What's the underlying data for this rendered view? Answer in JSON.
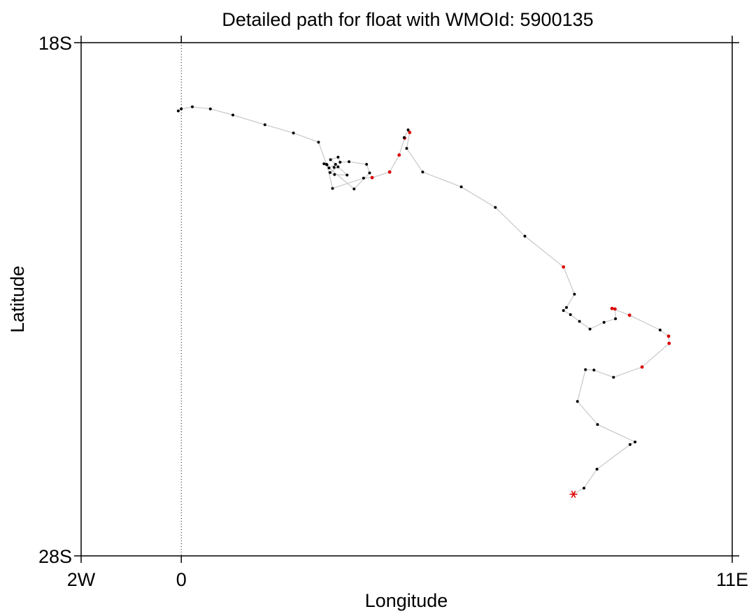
{
  "chart_data": {
    "type": "scatter",
    "title": "Detailed path for float with WMOId: 5900135",
    "xlabel": "Longitude",
    "ylabel": "Latitude",
    "xlim": [
      -2,
      11
    ],
    "ylim": [
      -28,
      -18
    ],
    "x_ticks": [
      {
        "value": -2,
        "label": "2W"
      },
      {
        "value": 0,
        "label": "0"
      },
      {
        "value": 11,
        "label": "11E"
      }
    ],
    "y_ticks": [
      {
        "value": -18,
        "label": "18S"
      },
      {
        "value": -28,
        "label": "28S"
      }
    ],
    "grid": false,
    "reference_line_x": 0,
    "colors": {
      "path": "#c8c8c8",
      "normal_point": "#000000",
      "flagged_point": "#dd0000",
      "last_position": "#dd0000"
    },
    "points": [
      {
        "lon": -0.06,
        "lat": -19.33,
        "flag": false
      },
      {
        "lon": 0.0,
        "lat": -19.29,
        "flag": false
      },
      {
        "lon": 0.22,
        "lat": -19.25,
        "flag": false
      },
      {
        "lon": 0.58,
        "lat": -19.29,
        "flag": false
      },
      {
        "lon": 1.03,
        "lat": -19.41,
        "flag": false
      },
      {
        "lon": 1.67,
        "lat": -19.6,
        "flag": false
      },
      {
        "lon": 2.24,
        "lat": -19.76,
        "flag": false
      },
      {
        "lon": 2.74,
        "lat": -19.94,
        "flag": false
      },
      {
        "lon": 2.9,
        "lat": -20.37,
        "flag": false
      },
      {
        "lon": 2.95,
        "lat": -20.44,
        "flag": false
      },
      {
        "lon": 3.08,
        "lat": -20.37,
        "flag": false
      },
      {
        "lon": 3.05,
        "lat": -20.43,
        "flag": false
      },
      {
        "lon": 3.13,
        "lat": -20.42,
        "flag": false
      },
      {
        "lon": 2.97,
        "lat": -20.53,
        "flag": false
      },
      {
        "lon": 3.06,
        "lat": -20.57,
        "flag": false
      },
      {
        "lon": 3.31,
        "lat": -20.58,
        "flag": false
      },
      {
        "lon": 2.98,
        "lat": -20.28,
        "flag": false
      },
      {
        "lon": 3.13,
        "lat": -20.23,
        "flag": false
      },
      {
        "lon": 3.17,
        "lat": -20.33,
        "flag": false
      },
      {
        "lon": 3.35,
        "lat": -20.32,
        "flag": false
      },
      {
        "lon": 3.7,
        "lat": -20.37,
        "flag": false
      },
      {
        "lon": 3.76,
        "lat": -20.54,
        "flag": false
      },
      {
        "lon": 3.45,
        "lat": -20.85,
        "flag": false
      },
      {
        "lon": 2.85,
        "lat": -20.36,
        "flag": false
      },
      {
        "lon": 2.91,
        "lat": -20.38,
        "flag": false
      },
      {
        "lon": 3.02,
        "lat": -20.84,
        "flag": false
      },
      {
        "lon": 3.64,
        "lat": -20.64,
        "flag": false
      },
      {
        "lon": 3.81,
        "lat": -20.63,
        "flag": true
      },
      {
        "lon": 4.16,
        "lat": -20.52,
        "flag": true
      },
      {
        "lon": 4.35,
        "lat": -20.19,
        "flag": true
      },
      {
        "lon": 4.46,
        "lat": -19.86,
        "flag": true
      },
      {
        "lon": 4.45,
        "lat": -19.85,
        "flag": false
      },
      {
        "lon": 4.53,
        "lat": -19.7,
        "flag": false
      },
      {
        "lon": 4.56,
        "lat": -19.75,
        "flag": true
      },
      {
        "lon": 4.5,
        "lat": -20.06,
        "flag": false
      },
      {
        "lon": 4.82,
        "lat": -20.52,
        "flag": false
      },
      {
        "lon": 5.59,
        "lat": -20.81,
        "flag": false
      },
      {
        "lon": 6.27,
        "lat": -21.21,
        "flag": false
      },
      {
        "lon": 6.86,
        "lat": -21.77,
        "flag": false
      },
      {
        "lon": 7.63,
        "lat": -22.37,
        "flag": true
      },
      {
        "lon": 7.85,
        "lat": -22.9,
        "flag": false
      },
      {
        "lon": 7.69,
        "lat": -23.16,
        "flag": false
      },
      {
        "lon": 7.63,
        "lat": -23.22,
        "flag": false
      },
      {
        "lon": 7.77,
        "lat": -23.3,
        "flag": false
      },
      {
        "lon": 7.95,
        "lat": -23.43,
        "flag": false
      },
      {
        "lon": 8.16,
        "lat": -23.58,
        "flag": false
      },
      {
        "lon": 8.44,
        "lat": -23.45,
        "flag": false
      },
      {
        "lon": 8.67,
        "lat": -23.38,
        "flag": false
      },
      {
        "lon": 8.66,
        "lat": -23.19,
        "flag": true
      },
      {
        "lon": 8.6,
        "lat": -23.18,
        "flag": true
      },
      {
        "lon": 8.95,
        "lat": -23.31,
        "flag": true
      },
      {
        "lon": 9.56,
        "lat": -23.6,
        "flag": false
      },
      {
        "lon": 9.73,
        "lat": -23.72,
        "flag": true
      },
      {
        "lon": 9.74,
        "lat": -23.86,
        "flag": true
      },
      {
        "lon": 9.2,
        "lat": -24.32,
        "flag": true
      },
      {
        "lon": 8.63,
        "lat": -24.52,
        "flag": false
      },
      {
        "lon": 8.24,
        "lat": -24.38,
        "flag": false
      },
      {
        "lon": 8.07,
        "lat": -24.37,
        "flag": false
      },
      {
        "lon": 7.91,
        "lat": -24.99,
        "flag": false
      },
      {
        "lon": 8.31,
        "lat": -25.44,
        "flag": false
      },
      {
        "lon": 9.06,
        "lat": -25.78,
        "flag": false
      },
      {
        "lon": 8.96,
        "lat": -25.83,
        "flag": false
      },
      {
        "lon": 8.3,
        "lat": -26.31,
        "flag": false
      },
      {
        "lon": 8.04,
        "lat": -26.68,
        "flag": false
      }
    ],
    "last_position": {
      "lon": 7.83,
      "lat": -26.8
    }
  }
}
